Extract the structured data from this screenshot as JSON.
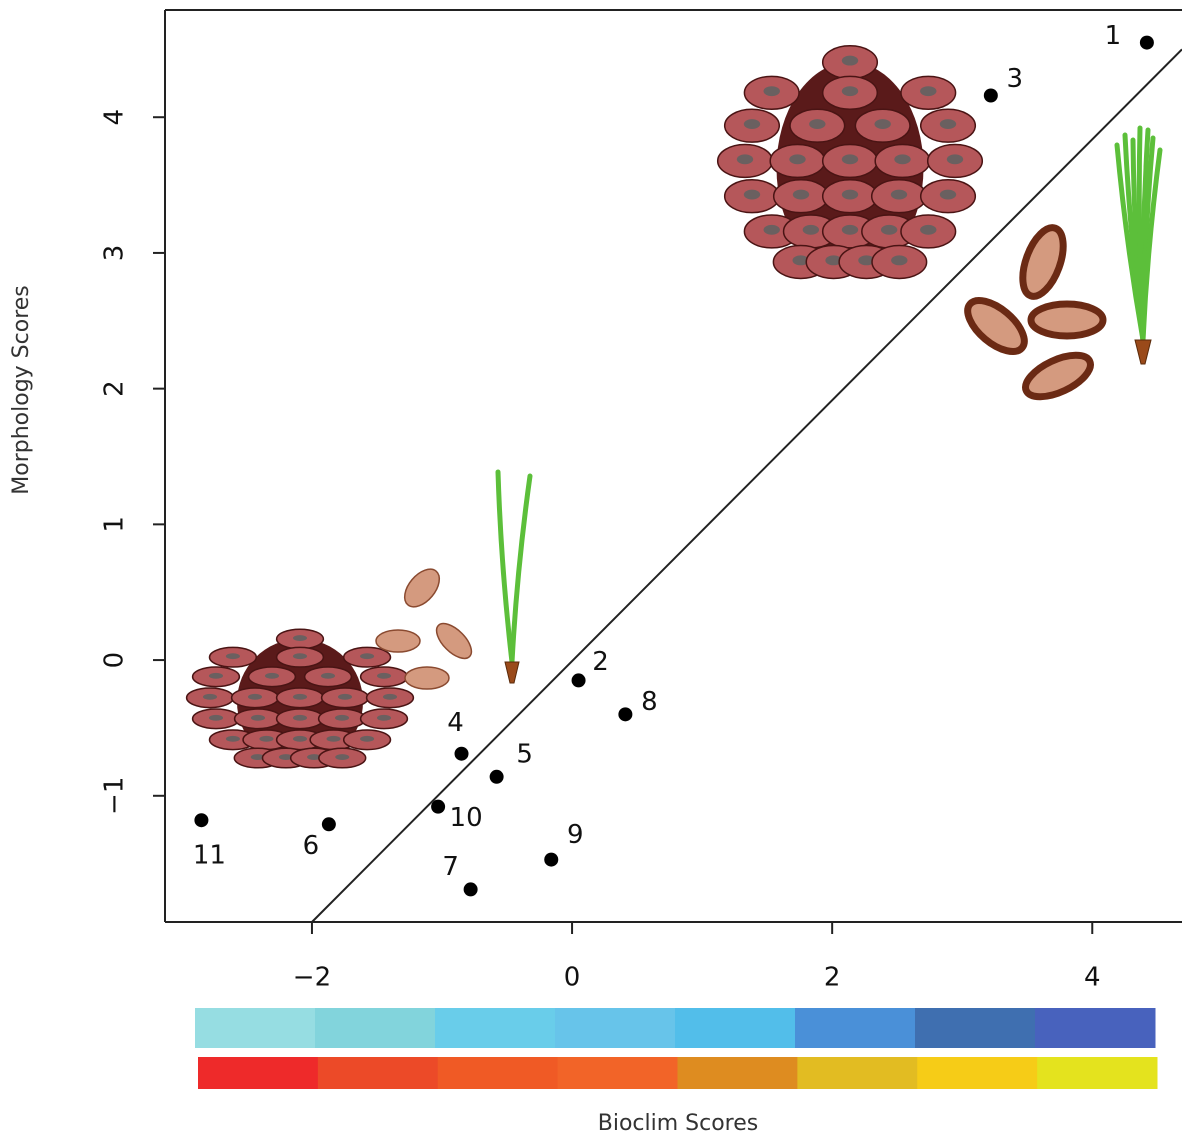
{
  "chart_data": {
    "type": "scatter",
    "x_label": "Bioclim Scores",
    "y_label": "Morphology Scores",
    "labels": [
      "1",
      "3",
      "2",
      "8",
      "4",
      "5",
      "10",
      "9",
      "7",
      "6",
      "11"
    ],
    "x": [
      4.42,
      3.22,
      0.05,
      0.41,
      -0.85,
      -0.58,
      -1.03,
      -0.16,
      -0.78,
      -1.87,
      -2.85
    ],
    "y": [
      4.55,
      4.16,
      -0.15,
      -0.4,
      -0.69,
      -0.86,
      -1.08,
      -1.47,
      -1.69,
      -1.21,
      -1.18
    ],
    "color": "#000000",
    "reference_line": {
      "x": [
        -2,
        4.69
      ],
      "y": [
        -1.93,
        4.5
      ]
    },
    "xlim": [
      -3.13,
      4.69
    ],
    "ylim": [
      -1.93,
      4.79
    ],
    "xticks": [
      {
        "value": -2,
        "label": "−2"
      },
      0,
      2,
      4
    ],
    "yticks": [
      {
        "value": -1,
        "label": "−1"
      },
      0,
      1,
      2,
      3,
      4
    ],
    "bioclim_colors_top": [
      "#96dde2",
      "#82d4dc",
      "#69cdea",
      "#67c4ea",
      "#52beea",
      "#4a90d8",
      "#3f6fb0",
      "#4862bd"
    ],
    "bioclim_colors_bottom": [
      "#ee2a2a",
      "#ec4a28",
      "#f05a25",
      "#f26428",
      "#de8c20",
      "#e2bc22",
      "#f6cc17",
      "#e4e31e"
    ]
  }
}
